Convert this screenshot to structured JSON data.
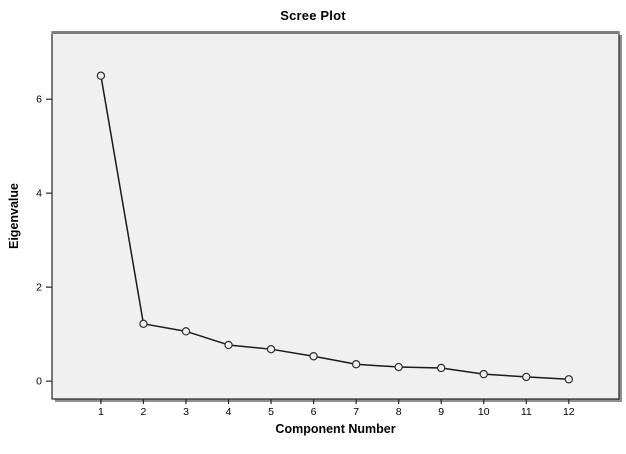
{
  "chart_data": {
    "type": "line",
    "title": "Scree Plot",
    "xlabel": "Component Number",
    "ylabel": "Eigenvalue",
    "series": [
      {
        "name": "Eigenvalues",
        "x": [
          1,
          2,
          3,
          4,
          5,
          6,
          7,
          8,
          9,
          10,
          11,
          12
        ],
        "values": [
          6.5,
          1.22,
          1.06,
          0.77,
          0.68,
          0.53,
          0.36,
          0.3,
          0.28,
          0.15,
          0.09,
          0.04
        ]
      }
    ],
    "x_tick_labels": [
      "1",
      "2",
      "3",
      "4",
      "5",
      "6",
      "7",
      "8",
      "9",
      "10",
      "11",
      "12"
    ],
    "y_ticks": [
      0,
      2,
      4,
      6
    ],
    "y_tick_labels": [
      "0",
      "2",
      "4",
      "6"
    ],
    "xlim": [
      -0.15,
      13.18
    ],
    "ylim": [
      -0.38,
      7.43
    ],
    "grid": false,
    "legend_position": "none",
    "marker": "open-circle",
    "colors": {
      "line": "#1a1a1a",
      "marker_stroke": "#2e2e2e",
      "marker_fill": "#f0f0f0",
      "plot_background": "#f0f0f0",
      "page_background": "#ffffff",
      "panel_border": "#262626",
      "panel_top_border": "#7d7d7d",
      "panel_shadow": "#8f8f8f",
      "tick": "#262626",
      "text": "#000000"
    }
  }
}
